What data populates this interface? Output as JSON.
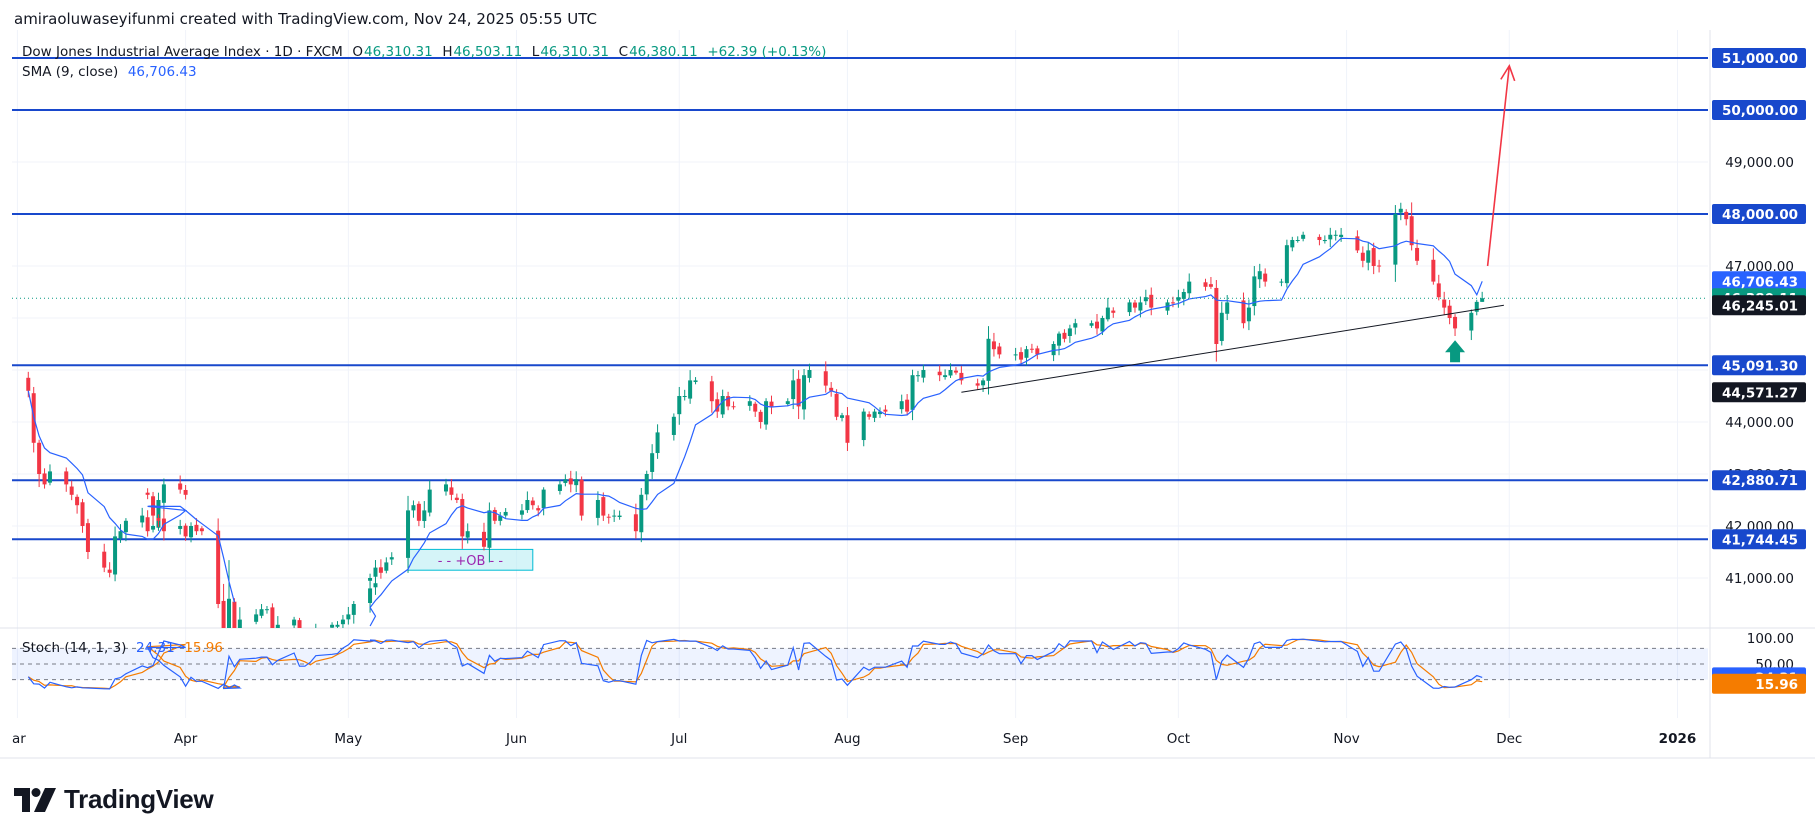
{
  "credit": "amiraoluwaseyifunmi created with TradingView.com, Nov 24, 2025 05:55 UTC",
  "brand": "TradingView",
  "legend": {
    "title": "Dow Jones Industrial Average Index · 1D · FXCM",
    "o_label": "O",
    "o_value": "46,310.31",
    "h_label": "H",
    "h_value": "46,503.11",
    "l_label": "L",
    "l_value": "46,310.31",
    "c_label": "C",
    "c_value": "46,380.11",
    "change": "+62.39 (+0.13%)",
    "sma_label": "SMA (9, close)",
    "sma_value": "46,706.43",
    "stoch_label": "Stoch (14, 1, 3)",
    "stoch_k": "24.31",
    "stoch_d": "15.96"
  },
  "colors": {
    "up": "#089981",
    "down": "#f23645",
    "level": "#1848cc",
    "sma": "#2962ff",
    "stoch_k": "#2962ff",
    "stoch_d": "#f57c00",
    "trendline": "#131722",
    "arrow": "#f23645"
  },
  "chart_data": [
    {
      "type": "candlestick",
      "title": "Dow Jones Industrial Average Index · 1D · FXCM",
      "ylim": [
        40300,
        51500
      ],
      "y_ticks": [
        41000,
        42000,
        43000,
        44000,
        47000,
        49000
      ],
      "y_tick_labels": [
        "41,000.00",
        "42,000.00",
        "43,000.00",
        "44,000.00",
        "47,000.00",
        "49,000.00"
      ],
      "x_labels": [
        "ar",
        "Apr",
        "May",
        "Jun",
        "Jul",
        "Aug",
        "Sep",
        "Oct",
        "Nov",
        "Dec",
        "2026"
      ],
      "x_label_dates": [
        "2025-03-01",
        "2025-04-01",
        "2025-05-01",
        "2025-06-01",
        "2025-07-01",
        "2025-08-01",
        "2025-09-01",
        "2025-10-01",
        "2025-11-01",
        "2025-12-01",
        "2026-01-01"
      ],
      "levels": [
        51000,
        50000,
        48000,
        45091.3,
        42880.71,
        41744.45
      ],
      "level_labels": [
        "51,000.00",
        "50,000.00",
        "48,000.00",
        "45,091.30",
        "42,880.71",
        "41,744.45"
      ],
      "price_tags": [
        {
          "label": "46,706.43",
          "value": 46706.43,
          "color": "#2962ff"
        },
        {
          "label": "46,380.11",
          "value": 46380.11,
          "color": "#089981"
        },
        {
          "label": "46,245.01",
          "value": 46245.01,
          "color": "#131722"
        },
        {
          "label": "44,571.27",
          "value": 44571.27,
          "color": "#131722"
        }
      ],
      "last_price": 46380.11,
      "trendline": [
        [
          "2025-08-22",
          44571.27
        ],
        [
          "2025-11-30",
          46245.01
        ]
      ],
      "projection_arrow": [
        [
          "2025-11-27",
          47000
        ],
        [
          "2025-12-01",
          50850
        ]
      ],
      "support_arrow": {
        "date": "2025-11-21",
        "value": 45150
      },
      "annotation": {
        "label": "- - +OB - -",
        "x_range": [
          "2025-05-12",
          "2025-06-04"
        ],
        "y_range": [
          41150,
          41550
        ]
      },
      "sma": {
        "name": "SMA (9, close)",
        "last": 46706.43
      },
      "series_daily": [
        {
          "from": "2025-03-03",
          "to": "2025-03-24",
          "values": [
            44600,
            43600,
            43000,
            42800,
            43050,
            42800,
            42600,
            42400,
            42000,
            41500,
            41200,
            41100,
            41800,
            41900,
            42100,
            42200,
            41900,
            42000,
            42500,
            42800,
            42700,
            42600
          ]
        },
        {
          "from": "2025-03-25",
          "to": "2025-04-07",
          "values": [
            42600,
            42200,
            42100,
            41900,
            42000,
            41800,
            42000,
            41900,
            41900,
            40500,
            38400,
            38000,
            38300,
            37700
          ]
        },
        {
          "from": "2025-04-08",
          "to": "2025-05-02",
          "values": [
            37600,
            40600,
            39600,
            40200,
            40300,
            40400,
            40400,
            39700,
            40100,
            40200,
            39200,
            39200,
            39500,
            40000,
            40100,
            40100,
            40200,
            40300,
            40500,
            40800,
            40900
          ]
        },
        {
          "from": "2025-05-05",
          "to": "2025-05-30",
          "values": [
            41000,
            41200,
            41100,
            41300,
            41400,
            42300,
            42400,
            42100,
            42300,
            42700,
            42800,
            42600,
            42500,
            41800,
            41900,
            41600,
            42300,
            42100,
            42200,
            42270
          ]
        },
        {
          "from": "2025-06-02",
          "to": "2025-06-30",
          "values": [
            42300,
            42500,
            42400,
            42300,
            42700,
            42800,
            42900,
            42800,
            42900,
            42200,
            42500,
            42200,
            42170,
            42200,
            42200,
            41900,
            42600,
            43000,
            43400,
            43800,
            44100
          ]
        },
        {
          "from": "2025-07-01",
          "to": "2025-07-31",
          "values": [
            44500,
            44500,
            44800,
            44800,
            44400,
            44200,
            44500,
            44300,
            44300,
            44400,
            44200,
            44000,
            44400,
            44300,
            44400,
            44800,
            44300,
            44900,
            45000,
            44700,
            44600,
            44100,
            44130
          ]
        },
        {
          "from": "2025-08-01",
          "to": "2025-08-29",
          "values": [
            43600,
            44200,
            44100,
            44200,
            44200,
            44200,
            44400,
            44200,
            44900,
            44900,
            45000,
            44900,
            44900,
            45000,
            44950,
            44800,
            44700,
            44800,
            45600,
            45400,
            45300
          ]
        },
        {
          "from": "2025-09-01",
          "to": "2025-09-30",
          "values": [
            45300,
            45200,
            45400,
            45400,
            45300,
            45500,
            45700,
            45600,
            45800,
            45900,
            45900,
            45800,
            46000,
            46200,
            46100,
            46300,
            46200,
            46300,
            46400,
            46200,
            46300,
            46300
          ]
        },
        {
          "from": "2025-10-01",
          "to": "2025-10-31",
          "values": [
            46400,
            46500,
            46700,
            46600,
            46600,
            45500,
            46100,
            46300,
            45900,
            46200,
            46800,
            46900,
            46700,
            46700,
            47400,
            47500,
            47500,
            47600,
            47500,
            47500,
            47600,
            47600,
            47600
          ]
        },
        {
          "from": "2025-11-03",
          "to": "2025-11-24",
          "values": [
            47300,
            47100,
            47300,
            47000,
            47000,
            48000,
            48100,
            47900,
            47400,
            47100,
            46700,
            46400,
            46200,
            46000,
            45800,
            46100,
            46310,
            46380
          ]
        }
      ]
    },
    {
      "type": "line",
      "title": "Stoch (14, 1, 3)",
      "ylim": [
        0,
        100
      ],
      "y_ticks": [
        100,
        50
      ],
      "y_tick_labels": [
        "100.00",
        "50.00"
      ],
      "band": [
        80,
        20
      ],
      "series": [
        {
          "name": "K",
          "color": "#2962ff",
          "last": 24.31,
          "last_label": "24.31"
        },
        {
          "name": "D",
          "color": "#f57c00",
          "last": 15.96,
          "last_label": "15.96"
        }
      ]
    }
  ]
}
